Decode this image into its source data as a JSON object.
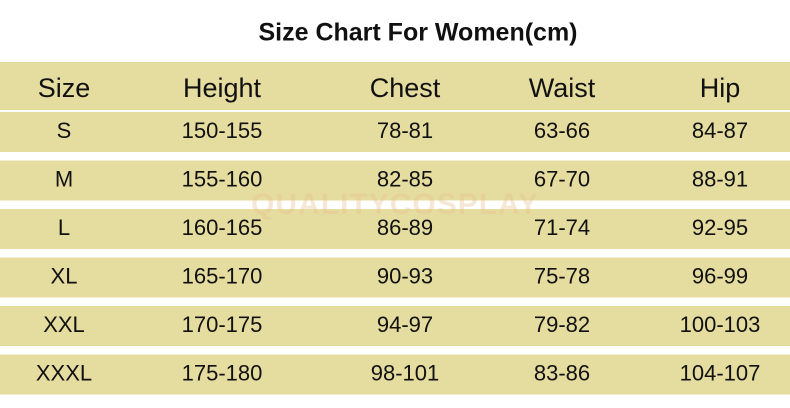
{
  "title": "Size Chart For Women(cm)",
  "watermark": "QUALITYCOSPLAY",
  "table": {
    "header": [
      "Size",
      "Height",
      "Chest",
      "Waist",
      "Hip"
    ],
    "rows": [
      [
        "S",
        "150-155",
        "78-81",
        "63-66",
        "84-87"
      ],
      [
        "M",
        "155-160",
        "82-85",
        "67-70",
        "88-91"
      ],
      [
        "L",
        "160-165",
        "86-89",
        "71-74",
        "92-95"
      ],
      [
        "XL",
        "165-170",
        "90-93",
        "75-78",
        "96-99"
      ],
      [
        "XXL",
        "170-175",
        "94-97",
        "79-82",
        "100-103"
      ],
      [
        "XXXL",
        "175-180",
        "98-101",
        "83-86",
        "104-107"
      ]
    ]
  }
}
